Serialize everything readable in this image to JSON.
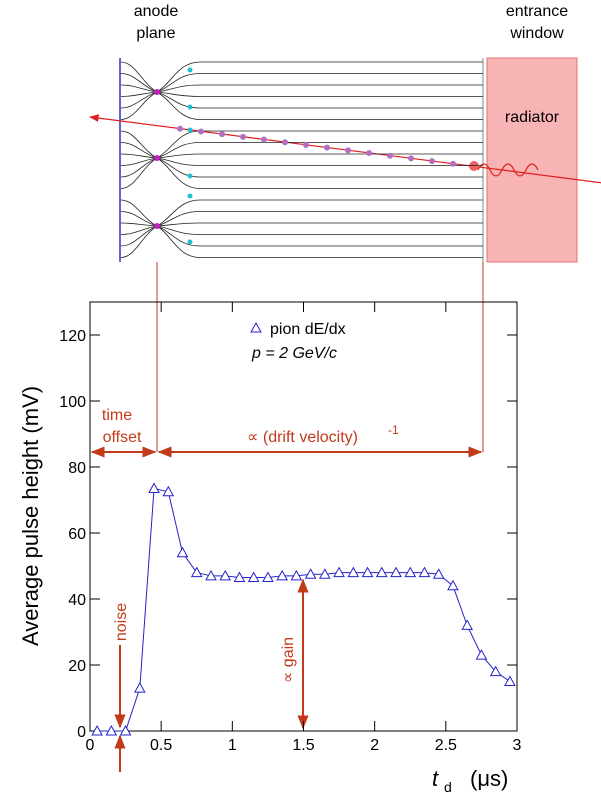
{
  "chart_data": {
    "type": "line",
    "y_label": "Average pulse height (mV)",
    "x_label": {
      "symbol": "t",
      "subscript": "d",
      "unit": "(μs)"
    },
    "x": [
      0.05,
      0.15,
      0.25,
      0.35,
      0.45,
      0.55,
      0.65,
      0.75,
      0.85,
      0.95,
      1.05,
      1.15,
      1.25,
      1.35,
      1.45,
      1.55,
      1.65,
      1.75,
      1.85,
      1.95,
      2.05,
      2.15,
      2.25,
      2.35,
      2.45,
      2.55,
      2.65,
      2.75,
      2.85,
      2.95
    ],
    "series": [
      {
        "name": "pion dE/dx",
        "color": "#2424c8",
        "values": [
          0,
          0,
          0,
          13,
          73.5,
          72.5,
          54,
          48,
          47,
          47,
          46.5,
          46.5,
          46.5,
          47,
          47,
          47.5,
          47.5,
          48,
          48,
          48,
          48,
          48,
          48,
          48,
          47.5,
          44,
          32,
          23,
          18,
          15
        ]
      }
    ],
    "xlim": [
      0,
      3
    ],
    "xticks": [
      0,
      0.5,
      1,
      1.5,
      2,
      2.5,
      3
    ],
    "ylim": [
      0,
      130
    ],
    "yticks": [
      0,
      20,
      40,
      60,
      80,
      100,
      120
    ],
    "annotations": {
      "momentum": "p = 2 GeV/c",
      "time_offset": [
        "time",
        "offset"
      ],
      "drift": "∝ (drift velocity)",
      "drift_exponent": "-1",
      "noise": "noise",
      "gain": "∝ gain"
    }
  },
  "diagram": {
    "anode": [
      "anode",
      "plane"
    ],
    "window": [
      "entrance",
      "window"
    ],
    "radiator": "radiator"
  }
}
